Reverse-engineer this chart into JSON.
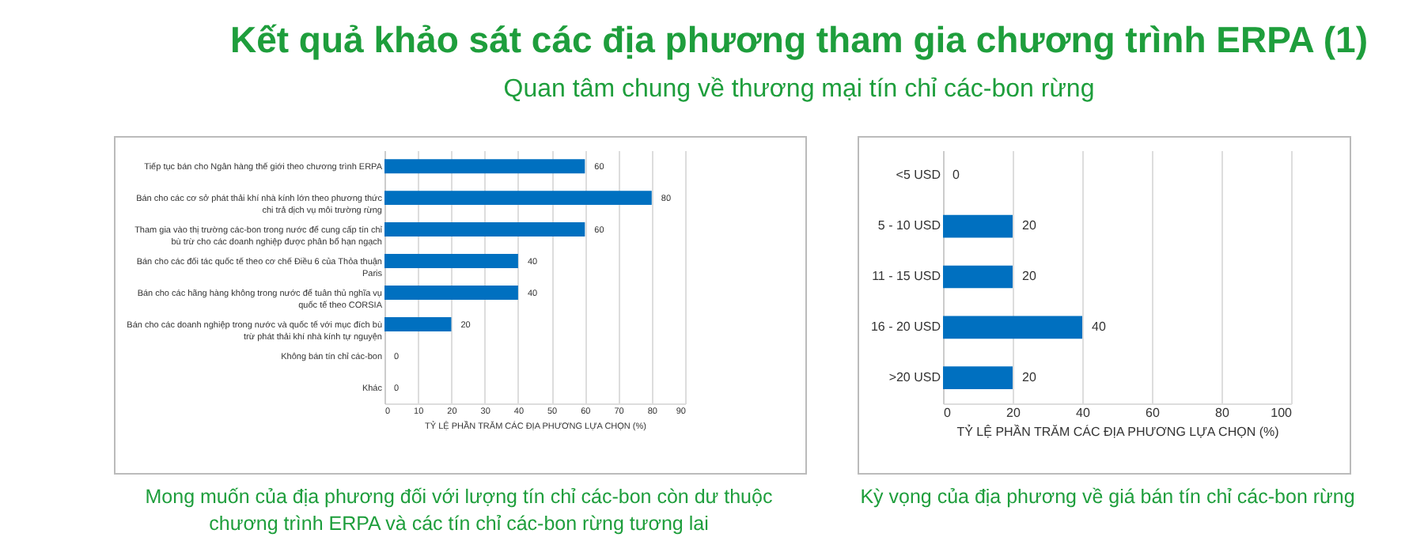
{
  "chart_data": [
    {
      "type": "bar",
      "orientation": "horizontal",
      "title": "Kết quả khảo sát các địa phương tham gia chương trình ERPA (1)",
      "subtitle": "Quan tâm chung về thương mại tín chỉ các-bon rừng",
      "categories": [
        "Tiếp tục bán cho Ngân hàng thế giới theo chương trình ERPA",
        "Bán cho các cơ sở phát thải khí nhà kính lớn theo phương thức chi trả dịch vụ môi trường rừng",
        "Tham gia vào thị trường các-bon trong nước để cung cấp tín chỉ bù trừ cho các doanh nghiệp được phân bổ hạn ngạch",
        "Bán cho các đối tác quốc tế theo cơ chế Điều 6 của Thỏa thuận Paris",
        "Bán cho các hãng hàng không trong nước để tuân thủ nghĩa vụ quốc tế theo CORSIA",
        "Bán cho các doanh nghiệp trong nước và quốc tế với mục đích bù trừ phát thải khí nhà kính tự nguyện",
        "Không bán tín chỉ các-bon",
        "Khác"
      ],
      "series": [
        {
          "color": "#0070c0",
          "values": [
            60,
            80,
            60,
            40,
            40,
            20,
            0,
            0
          ]
        }
      ],
      "xlabel": "TỶ LỆ PHẦN TRĂM CÁC ĐỊA PHƯƠNG LỰA CHỌN (%)",
      "xlim": [
        0,
        90
      ],
      "xticks": [
        0,
        10,
        20,
        30,
        40,
        50,
        60,
        70,
        80,
        90
      ],
      "grid": "x",
      "data_labels": true,
      "annotations": [
        "Mong muốn của địa phương đối với lượng tín chỉ các-bon còn dư thuộc chương trình ERPA và các tín chỉ các-bon rừng tương lai"
      ]
    },
    {
      "type": "bar",
      "orientation": "horizontal",
      "categories": [
        "<5 USD",
        "5 - 10 USD",
        "11 - 15 USD",
        "16 - 20 USD",
        ">20 USD"
      ],
      "series": [
        {
          "color": "#0070c0",
          "values": [
            0,
            20,
            20,
            40,
            20
          ]
        }
      ],
      "xlabel": "TỶ LỆ PHẦN TRĂM CÁC ĐỊA PHƯƠNG LỰA CHỌN (%)",
      "xlim": [
        0,
        100
      ],
      "xticks": [
        0,
        20,
        40,
        60,
        80,
        100
      ],
      "grid": "x",
      "data_labels": true,
      "annotations": [
        "Kỳ vọng của địa phương về giá bán tín chỉ các-bon rừng"
      ]
    }
  ]
}
